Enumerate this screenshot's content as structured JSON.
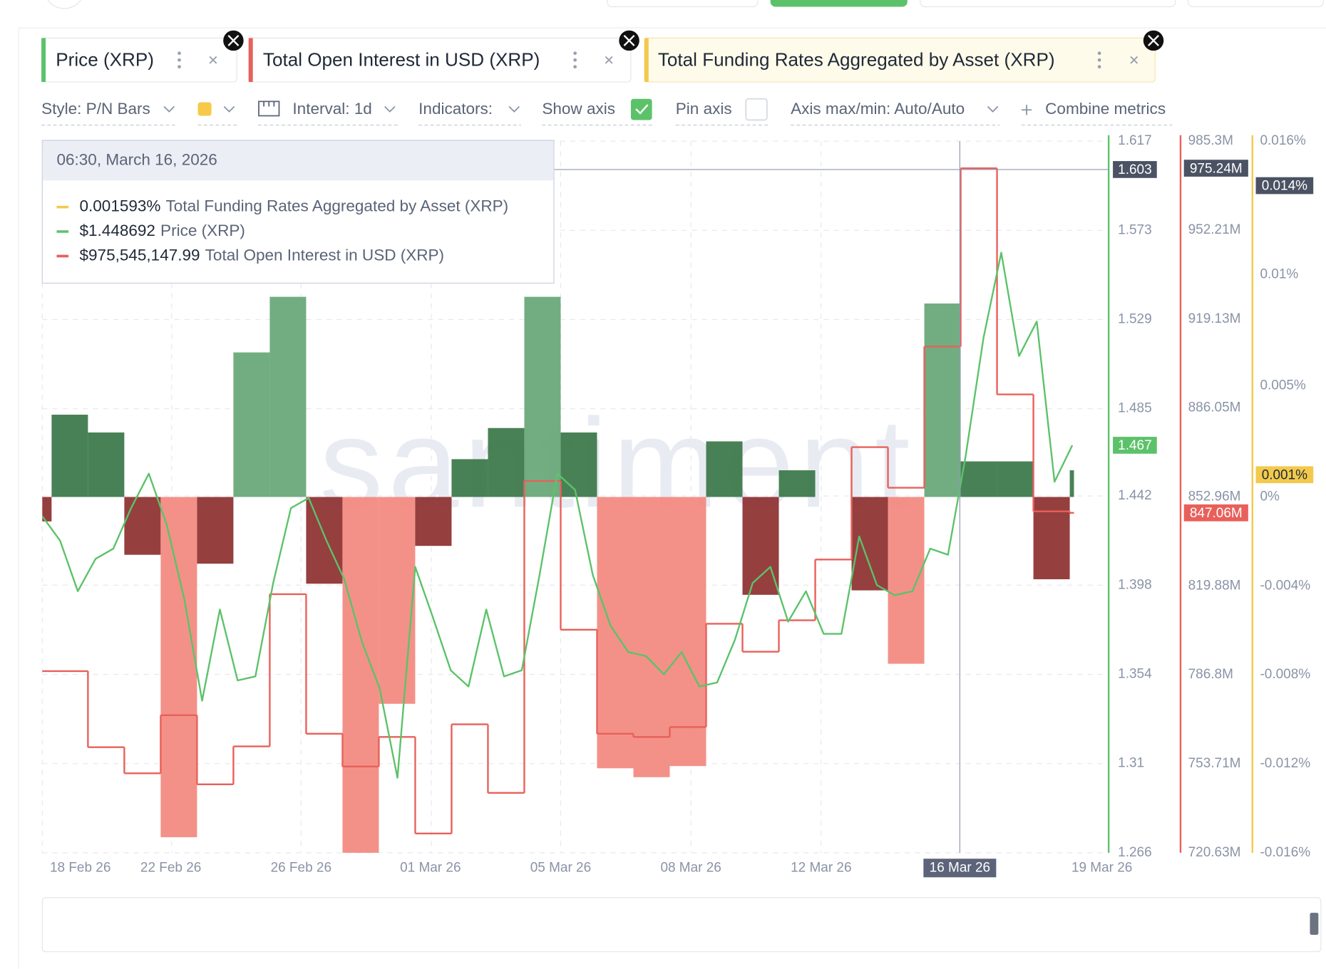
{
  "toolbar": {
    "style": "Style: P/N Bars",
    "interval": "Interval: 1d",
    "indicators": "Indicators:",
    "show_axis": "Show axis",
    "pin_axis": "Pin axis",
    "axis_range": "Axis max/min: Auto/Auto",
    "combine": "Combine metrics"
  },
  "chart_data": {
    "type": "combo",
    "watermark": "santiment",
    "xtick_labels": [
      "18 Feb 26",
      "22 Feb 26",
      "26 Feb 26",
      "01 Mar 26",
      "05 Mar 26",
      "08 Mar 26",
      "12 Mar 26",
      "16 Mar 26",
      "19 Mar 26"
    ],
    "crosshair_index": 7,
    "tooltip": {
      "time": "06:30, March 16, 2026",
      "values": [
        "0.001593%",
        "$1.448692",
        "$975,545,147.99"
      ]
    },
    "grid": true,
    "series": [
      {
        "name": "Price (XRP)",
        "type": "line",
        "axis": "y",
        "color": "#5cc26a",
        "values": [
          1.432,
          1.42,
          1.395,
          1.411,
          1.416,
          1.436,
          1.453,
          1.428,
          1.391,
          1.341,
          1.386,
          1.351,
          1.353,
          1.399,
          1.436,
          1.441,
          1.42,
          1.401,
          1.37,
          1.347,
          1.303,
          1.407,
          1.382,
          1.356,
          1.348,
          1.386,
          1.353,
          1.356,
          1.403,
          1.453,
          1.445,
          1.403,
          1.378,
          1.365,
          1.363,
          1.354,
          1.365,
          1.348,
          1.35,
          1.371,
          1.399,
          1.407,
          1.38,
          1.395,
          1.374,
          1.374,
          1.422,
          1.398,
          1.393,
          1.395,
          1.416,
          1.413,
          1.462,
          1.52,
          1.562,
          1.511,
          1.528,
          1.449,
          1.467
        ],
        "crosshair_value": 1.603,
        "last_value": 1.467
      },
      {
        "name": "Total Open Interest in USD (XRP)",
        "type": "step",
        "axis": "y2",
        "color": "#e8605a",
        "values": [
          788.2,
          788.2,
          759.9,
          750.2,
          771.8,
          746.1,
          760.2,
          816.8,
          764.9,
          752.7,
          763.7,
          727.8,
          768.4,
          742.9,
          858.9,
          803.6,
          764.9,
          763.7,
          767.4,
          805.8,
          795.4,
          807.1,
          829.7,
          871.5,
          856.4,
          908.9,
          975.2,
          891.1,
          847.6,
          847.06
        ],
        "crosshair_value": {
          "value": 975.24,
          "label": "975.24M"
        },
        "last_value": {
          "value": 847.06,
          "label": "847.06M"
        }
      },
      {
        "name": "Total Funding Rates Aggregated by Asset (XRP)",
        "type": "bar",
        "axis": "y3",
        "color": "#f2c94c",
        "values": [
          -0.0011,
          0.0037,
          0.0029,
          -0.0026,
          -0.0153,
          -0.003,
          0.0065,
          0.009,
          -0.0039,
          -0.016,
          -0.0093,
          -0.0022,
          0.0017,
          0.0031,
          0.009,
          0.0029,
          -0.0122,
          -0.0126,
          -0.0121,
          0.0025,
          -0.0044,
          0.0012,
          0,
          -0.0042,
          -0.0075,
          0.0087,
          0.0016,
          0.0016,
          -0.0037,
          0.0012
        ],
        "crosshair_value": {
          "value": 0.014,
          "label": "0.014%"
        },
        "last_value": {
          "value": 0.001,
          "label": "0.001%"
        }
      }
    ],
    "ylim": [
      1.266,
      1.617
    ],
    "yticks": [
      1.266,
      1.31,
      1.354,
      1.398,
      1.442,
      1.485,
      1.529,
      1.573,
      1.617
    ],
    "y2lim": [
      720.63,
      985.3
    ],
    "y2ticks": [
      {
        "value": 720.63,
        "label": "720.63M"
      },
      {
        "value": 753.71,
        "label": "753.71M"
      },
      {
        "value": 786.8,
        "label": "786.8M"
      },
      {
        "value": 819.88,
        "label": "819.88M"
      },
      {
        "value": 852.96,
        "label": "852.96M"
      },
      {
        "value": 886.05,
        "label": "886.05M"
      },
      {
        "value": 919.13,
        "label": "919.13M"
      },
      {
        "value": 952.21,
        "label": "952.21M"
      },
      {
        "value": 985.3,
        "label": "985.3M"
      }
    ],
    "y3lim": [
      -0.016,
      0.016
    ],
    "y3ticks": [
      {
        "value": -0.016,
        "label": "-0.016%"
      },
      {
        "value": -0.012,
        "label": "-0.012%"
      },
      {
        "value": -0.008,
        "label": "-0.008%"
      },
      {
        "value": -0.004,
        "label": "-0.004%"
      },
      {
        "value": 0,
        "label": "0%"
      },
      {
        "value": 0.005,
        "label": "0.005%"
      },
      {
        "value": 0.01,
        "label": "0.01%"
      },
      {
        "value": 0.016,
        "label": "0.016%"
      }
    ]
  }
}
